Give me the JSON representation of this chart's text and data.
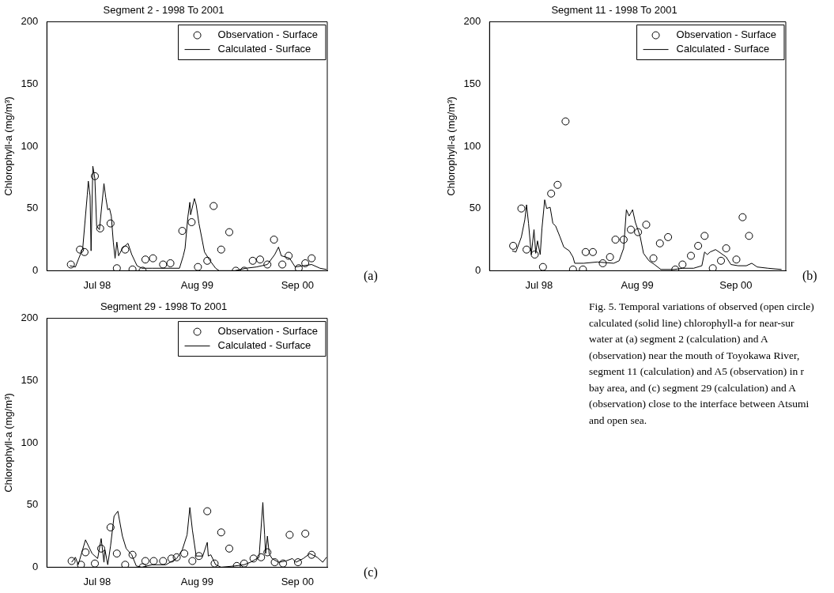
{
  "chart_data": [
    {
      "type": "scatter",
      "title": "Segment 2 - 1998 To 2001",
      "ylabel": "Chlorophyll-a (mg/m³)",
      "xlim": [
        "1997-12-14",
        "2000-12-28"
      ],
      "xticks": [
        {
          "value": "1998-07-01",
          "label": "Jul 98"
        },
        {
          "value": "1999-08-01",
          "label": "Aug 99"
        },
        {
          "value": "2000-09-01",
          "label": "Sep 00"
        }
      ],
      "ylim": [
        0,
        200
      ],
      "yticks": [
        0,
        50,
        100,
        150,
        200
      ],
      "grid": false,
      "legend": "top right",
      "annotations": [
        "(a)"
      ],
      "series": [
        {
          "name": "Observation - Surface",
          "type": "scatter",
          "marker": "circle",
          "color": "#000000",
          "x": [
            "1998-03-19",
            "1998-04-24",
            "1998-05-12",
            "1998-06-22",
            "1998-07-13",
            "1998-08-23",
            "1998-09-17",
            "1998-10-20",
            "1998-11-18",
            "1998-12-28",
            "1999-01-08",
            "1999-02-07",
            "1999-03-19",
            "1999-04-17",
            "1999-06-03",
            "1999-07-10",
            "1999-08-04",
            "1999-09-10",
            "1999-10-05",
            "1999-11-04",
            "1999-12-06",
            "2000-01-01",
            "2000-02-03",
            "2000-03-08",
            "2000-04-06",
            "2000-05-05",
            "2000-05-31",
            "2000-07-03",
            "2000-07-28",
            "2000-09-06",
            "2000-10-02",
            "2000-10-27"
          ],
          "values": [
            5,
            17,
            15,
            76,
            34,
            38,
            2,
            17,
            1,
            0,
            9,
            10,
            5,
            6,
            32,
            39,
            3,
            8,
            52,
            17,
            31,
            0,
            0,
            8,
            9,
            5,
            25,
            5,
            12,
            2,
            6,
            10
          ]
        },
        {
          "name": "Calculated - Surface",
          "type": "line",
          "marker": "none",
          "line_style": "solid",
          "color": "#000000",
          "x": [
            "1998-03-15",
            "1998-04-06",
            "1998-05-05",
            "1998-05-23",
            "1998-05-27",
            "1998-06-03",
            "1998-06-07",
            "1998-06-14",
            "1998-06-22",
            "1998-06-29",
            "1998-07-10",
            "1998-07-28",
            "1998-08-04",
            "1998-08-12",
            "1998-08-19",
            "1998-08-26",
            "1998-09-03",
            "1998-09-10",
            "1998-09-17",
            "1998-09-24",
            "1998-10-09",
            "1998-10-31",
            "1998-11-15",
            "1998-12-06",
            "1998-12-25",
            "1999-02-03",
            "1999-05-23",
            "1999-06-07",
            "1999-06-14",
            "1999-06-25",
            "1999-07-03",
            "1999-07-06",
            "1999-07-21",
            "1999-07-28",
            "1999-08-08",
            "1999-08-30",
            "1999-09-21",
            "1999-10-13",
            "1999-10-27",
            "1999-12-28",
            "2000-02-10",
            "2000-03-22",
            "2000-05-05",
            "2000-06-03",
            "2000-06-18",
            "2000-06-29",
            "2000-07-17",
            "2000-08-01",
            "2000-08-23",
            "2000-09-24",
            "2000-10-27",
            "2000-11-29",
            "2000-12-25"
          ],
          "values": [
            4,
            3,
            18,
            61,
            72,
            60,
            16,
            84,
            74,
            36,
            33,
            70,
            59,
            49,
            50,
            44,
            23,
            10,
            23,
            12,
            18,
            22,
            13,
            4,
            2,
            2,
            2,
            12,
            18,
            43,
            55,
            45,
            58,
            53,
            38,
            15,
            8,
            2,
            0,
            0,
            2,
            3,
            5,
            13,
            19,
            12,
            11,
            10,
            3,
            4,
            5,
            2,
            1
          ]
        }
      ]
    },
    {
      "type": "scatter",
      "title": "Segment 11 - 1998 To 2001",
      "ylabel": "Chlorophyll-a (mg/m³)",
      "xlim": [
        "1997-12-14",
        "2001-03-21"
      ],
      "xticks": [
        {
          "value": "1998-07-01",
          "label": "Jul 98"
        },
        {
          "value": "1999-08-01",
          "label": "Aug 99"
        },
        {
          "value": "2000-09-01",
          "label": "Sep 00"
        }
      ],
      "ylim": [
        0,
        200
      ],
      "yticks": [
        0,
        50,
        100,
        150,
        200
      ],
      "grid": false,
      "legend": "top right",
      "annotations": [
        "(b)"
      ],
      "series": [
        {
          "name": "Observation - Surface",
          "type": "scatter",
          "marker": "circle",
          "color": "#000000",
          "x": [
            "1998-03-19",
            "1998-04-21",
            "1998-05-12",
            "1998-06-14",
            "1998-07-17",
            "1998-08-19",
            "1998-09-14",
            "1998-10-16",
            "1998-11-15",
            "1998-12-25",
            "1999-01-05",
            "1999-02-03",
            "1999-03-15",
            "1999-04-13",
            "1999-05-05",
            "1999-06-07",
            "1999-07-06",
            "1999-08-04",
            "1999-09-06",
            "1999-10-05",
            "1999-10-31",
            "1999-12-03",
            "2000-01-01",
            "2000-01-30",
            "2000-03-04",
            "2000-04-02",
            "2000-04-28",
            "2000-05-31",
            "2000-07-03",
            "2000-07-24",
            "2000-09-03",
            "2000-09-28",
            "2000-10-24"
          ],
          "values": [
            20,
            50,
            17,
            13,
            3,
            62,
            69,
            120,
            1,
            1,
            15,
            15,
            6,
            11,
            25,
            25,
            33,
            31,
            37,
            10,
            22,
            27,
            1,
            5,
            12,
            20,
            28,
            2,
            8,
            18,
            9,
            43,
            28
          ]
        },
        {
          "name": "Calculated - Surface",
          "type": "line",
          "marker": "none",
          "line_style": "solid",
          "color": "#000000",
          "x": [
            "1998-03-15",
            "1998-03-30",
            "1998-04-21",
            "1998-05-05",
            "1998-05-12",
            "1998-05-20",
            "1998-05-31",
            "1998-06-11",
            "1998-06-18",
            "1998-06-25",
            "1998-07-06",
            "1998-07-13",
            "1998-07-24",
            "1998-08-01",
            "1998-08-15",
            "1998-08-26",
            "1998-09-06",
            "1998-09-24",
            "1998-10-09",
            "1998-10-31",
            "1998-11-15",
            "1998-11-22",
            "1998-12-28",
            "1999-02-21",
            "1999-04-28",
            "1999-05-20",
            "1999-06-07",
            "1999-06-18",
            "1999-06-29",
            "1999-07-13",
            "1999-07-24",
            "1999-08-12",
            "1999-08-26",
            "1999-09-17",
            "1999-10-09",
            "1999-11-04",
            "1999-12-28",
            "2000-01-30",
            "2000-03-15",
            "2000-04-17",
            "2000-04-28",
            "2000-05-09",
            "2000-05-20",
            "2000-06-11",
            "2000-07-03",
            "2000-07-24",
            "2000-08-12",
            "2000-09-10",
            "2000-10-13",
            "2000-11-04",
            "2000-11-26",
            "2001-01-08",
            "2001-03-04"
          ],
          "values": [
            16,
            15,
            27,
            41,
            53,
            38,
            13,
            33,
            14,
            24,
            13,
            34,
            57,
            50,
            51,
            38,
            36,
            27,
            19,
            16,
            11,
            6,
            6,
            7,
            6,
            8,
            18,
            49,
            44,
            49,
            39,
            28,
            14,
            8,
            5,
            1,
            1,
            2,
            2,
            4,
            15,
            13,
            15,
            17,
            14,
            11,
            5,
            4,
            4,
            6,
            3,
            2,
            1
          ]
        }
      ]
    },
    {
      "type": "scatter",
      "title": "Segment 29 - 1998 To 2001",
      "ylabel": "Chlorophyll-a (mg/m³)",
      "xlim": [
        "1997-12-14",
        "2000-12-28"
      ],
      "xticks": [
        {
          "value": "1998-07-01",
          "label": "Jul 98"
        },
        {
          "value": "1999-08-01",
          "label": "Aug 99"
        },
        {
          "value": "2000-09-01",
          "label": "Sep 00"
        }
      ],
      "ylim": [
        0,
        200
      ],
      "yticks": [
        0,
        50,
        100,
        150,
        200
      ],
      "grid": false,
      "legend": "top right",
      "annotations": [
        "(c)"
      ],
      "series": [
        {
          "name": "Observation - Surface",
          "type": "scatter",
          "marker": "circle",
          "color": "#000000",
          "x": [
            "1998-03-22",
            "1998-04-28",
            "1998-05-16",
            "1998-06-22",
            "1998-07-17",
            "1998-08-23",
            "1998-09-17",
            "1998-10-20",
            "1998-11-18",
            "1998-12-28",
            "1999-01-08",
            "1999-02-10",
            "1999-03-19",
            "1999-04-21",
            "1999-05-12",
            "1999-06-11",
            "1999-07-13",
            "1999-08-08",
            "1999-09-10",
            "1999-10-09",
            "1999-11-04",
            "1999-12-06",
            "2000-01-05",
            "2000-02-03",
            "2000-03-11",
            "2000-04-10",
            "2000-05-05",
            "2000-06-03",
            "2000-07-06",
            "2000-08-01",
            "2000-09-03",
            "2000-10-02",
            "2000-10-27"
          ],
          "values": [
            5,
            2,
            12,
            3,
            15,
            32,
            11,
            2,
            10,
            0,
            5,
            5,
            5,
            7,
            8,
            11,
            5,
            9,
            45,
            3,
            28,
            15,
            1,
            3,
            7,
            8,
            12,
            4,
            3,
            26,
            4,
            27,
            10
          ]
        },
        {
          "name": "Calculated - Surface",
          "type": "line",
          "marker": "none",
          "line_style": "solid",
          "color": "#000000",
          "x": [
            "1998-03-22",
            "1998-04-06",
            "1998-04-17",
            "1998-05-16",
            "1998-06-11",
            "1998-07-03",
            "1998-07-17",
            "1998-07-28",
            "1998-08-01",
            "1998-08-12",
            "1998-08-23",
            "1998-09-06",
            "1998-09-21",
            "1998-10-09",
            "1998-10-24",
            "1998-11-15",
            "1998-12-03",
            "1998-12-25",
            "1999-02-03",
            "1999-03-30",
            "1999-05-12",
            "1999-06-03",
            "1999-06-22",
            "1999-07-03",
            "1999-07-13",
            "1999-07-28",
            "1999-08-23",
            "1999-09-10",
            "1999-09-14",
            "1999-09-24",
            "1999-10-13",
            "1999-11-04",
            "1999-12-28",
            "2000-02-03",
            "2000-02-28",
            "2000-04-02",
            "2000-04-17",
            "2000-04-24",
            "2000-04-28",
            "2000-05-05",
            "2000-05-12",
            "2000-05-23",
            "2000-06-18",
            "2000-07-17",
            "2000-08-12",
            "2000-08-26",
            "2000-09-24",
            "2000-10-20",
            "2000-11-18",
            "2000-12-10",
            "2000-12-25"
          ],
          "values": [
            4,
            8,
            2,
            22,
            11,
            7,
            23,
            4,
            14,
            2,
            17,
            41,
            45,
            25,
            15,
            10,
            1,
            0,
            2,
            2,
            7,
            14,
            26,
            48,
            30,
            9,
            9,
            20,
            9,
            10,
            2,
            0,
            1,
            2,
            4,
            8,
            52,
            26,
            11,
            25,
            11,
            7,
            4,
            5,
            7,
            4,
            7,
            11,
            8,
            4,
            8
          ]
        }
      ]
    },
    {
      "type": "other",
      "annotations": [
        "Fig. 5. Temporal variations of observed (open circle)",
        "calculated (solid line) chlorophyll-a for near-sur",
        "water at (a) segment 2 (calculation) and A",
        "(observation) near the mouth of Toyokawa River,",
        "segment 11 (calculation) and A5 (observation) in r",
        "bay area, and (c) segment 29 (calculation) and A",
        "(observation) close to the interface between Atsumi",
        "and open sea."
      ]
    }
  ]
}
